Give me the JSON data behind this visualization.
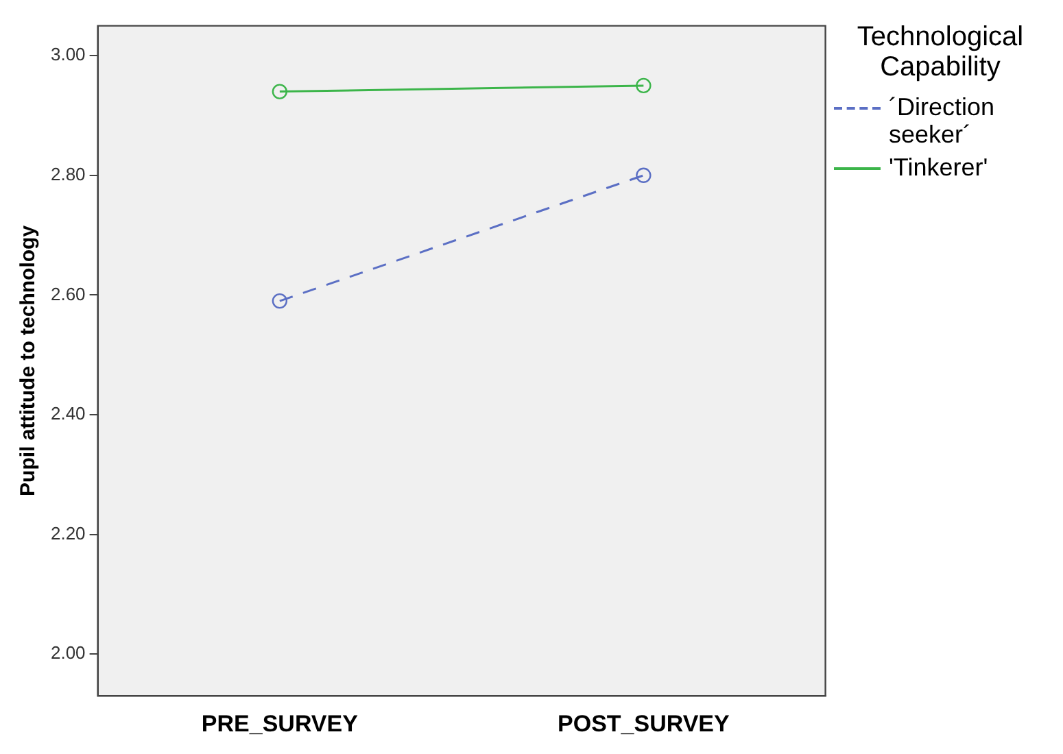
{
  "chart_data": {
    "type": "line",
    "ylabel": "Pupil attitude to technology",
    "legend_title": "Technological Capability",
    "categories": [
      "PRE_SURVEY",
      "POST_SURVEY"
    ],
    "series": [
      {
        "name": "´Direction seeker´",
        "color": "#5b6fc4",
        "values": [
          2.59,
          2.8
        ],
        "line_style": "dashed"
      },
      {
        "name": "'Tinkerer'",
        "color": "#3cb54a",
        "values": [
          2.94,
          2.95
        ],
        "line_style": "solid"
      }
    ],
    "ylim": [
      1.93,
      3.05
    ],
    "yticks": [
      {
        "value": 2,
        "label": "2.00"
      },
      {
        "value": 2.2,
        "label": "2.20"
      },
      {
        "value": 2.4,
        "label": "2.40"
      },
      {
        "value": 2.6,
        "label": "2.60"
      },
      {
        "value": 2.8,
        "label": "2.80"
      },
      {
        "value": 3,
        "label": "3.00"
      }
    ],
    "grid": false,
    "legend": "right",
    "marker": "circle"
  }
}
